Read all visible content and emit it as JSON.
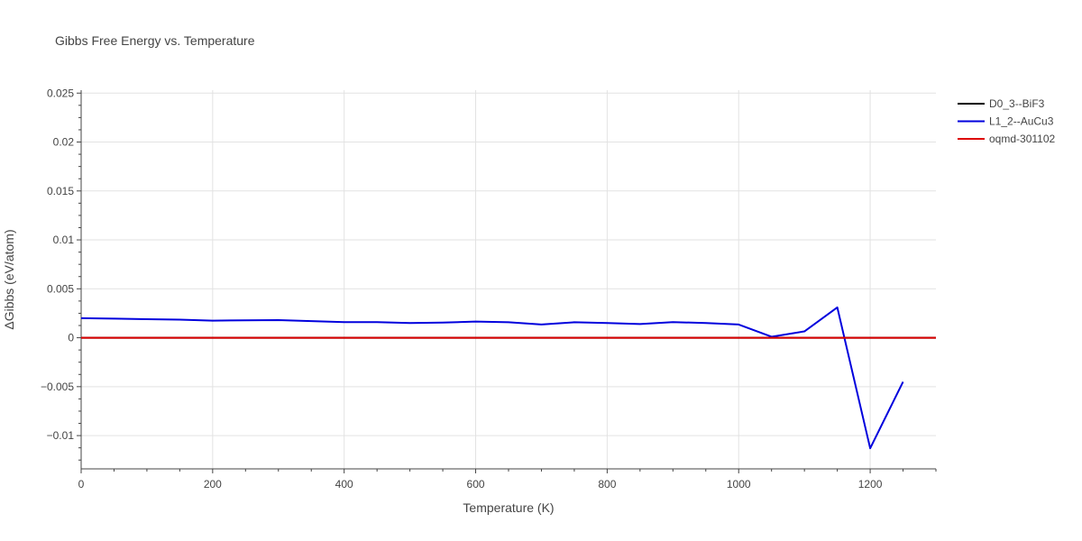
{
  "chart_data": {
    "type": "line",
    "title": "Gibbs Free Energy vs. Temperature",
    "xlabel": "Temperature (K)",
    "ylabel": "ΔGibbs (eV/atom)",
    "xlim": [
      0,
      1300
    ],
    "ylim": [
      -0.0134,
      0.0253
    ],
    "x_ticks": [
      0,
      200,
      400,
      600,
      800,
      1000,
      1200
    ],
    "x_tick_labels": [
      "0",
      "200",
      "400",
      "600",
      "800",
      "1000",
      "1200"
    ],
    "y_ticks": [
      -0.01,
      -0.005,
      0,
      0.005,
      0.01,
      0.015,
      0.02,
      0.025
    ],
    "y_tick_labels": [
      "−0.01",
      "−0.005",
      "0",
      "0.005",
      "0.01",
      "0.015",
      "0.02",
      "0.025"
    ],
    "grid": true,
    "legend_position": "top-right",
    "series": [
      {
        "name": "D0_3--BiF3",
        "color": "#000000",
        "x": [
          0,
          1300
        ],
        "y": [
          0,
          0
        ]
      },
      {
        "name": "L1_2--AuCu3",
        "color": "#0000dd",
        "x": [
          0,
          50,
          100,
          150,
          200,
          250,
          300,
          350,
          400,
          450,
          500,
          550,
          600,
          650,
          700,
          750,
          800,
          850,
          900,
          950,
          1000,
          1050,
          1100,
          1150,
          1200,
          1250
        ],
        "y": [
          0.002,
          0.00195,
          0.0019,
          0.00185,
          0.00175,
          0.00178,
          0.0018,
          0.0017,
          0.0016,
          0.0016,
          0.0015,
          0.00155,
          0.00165,
          0.00158,
          0.00135,
          0.00158,
          0.0015,
          0.0014,
          0.0016,
          0.0015,
          0.00135,
          0.0001,
          0.00065,
          0.0031,
          -0.0113,
          -0.0045
        ]
      },
      {
        "name": "oqmd-301102",
        "color": "#dd0000",
        "x": [
          0,
          1300
        ],
        "y": [
          0,
          0
        ]
      }
    ]
  }
}
